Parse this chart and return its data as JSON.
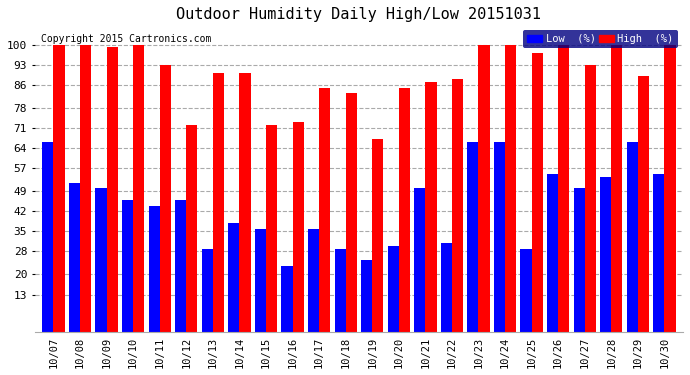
{
  "title": "Outdoor Humidity Daily High/Low 20151031",
  "copyright": "Copyright 2015 Cartronics.com",
  "dates": [
    "10/07",
    "10/08",
    "10/09",
    "10/10",
    "10/11",
    "10/12",
    "10/13",
    "10/14",
    "10/15",
    "10/16",
    "10/17",
    "10/18",
    "10/19",
    "10/20",
    "10/21",
    "10/22",
    "10/23",
    "10/24",
    "10/25",
    "10/26",
    "10/27",
    "10/28",
    "10/29",
    "10/30"
  ],
  "high": [
    100,
    100,
    99,
    100,
    93,
    72,
    90,
    90,
    72,
    73,
    85,
    83,
    67,
    85,
    87,
    88,
    100,
    100,
    97,
    100,
    93,
    100,
    89,
    100
  ],
  "low": [
    66,
    52,
    50,
    46,
    44,
    46,
    29,
    38,
    36,
    23,
    36,
    29,
    25,
    30,
    50,
    31,
    66,
    66,
    29,
    55,
    50,
    54,
    66,
    55
  ],
  "high_color": "#ff0000",
  "low_color": "#0000ff",
  "bg_color": "#ffffff",
  "grid_color": "#aaaaaa",
  "yticks": [
    13,
    20,
    28,
    35,
    42,
    49,
    57,
    64,
    71,
    78,
    86,
    93,
    100
  ],
  "ylim": [
    0,
    107
  ],
  "legend_low_label": "Low  (%)",
  "legend_high_label": "High  (%)"
}
